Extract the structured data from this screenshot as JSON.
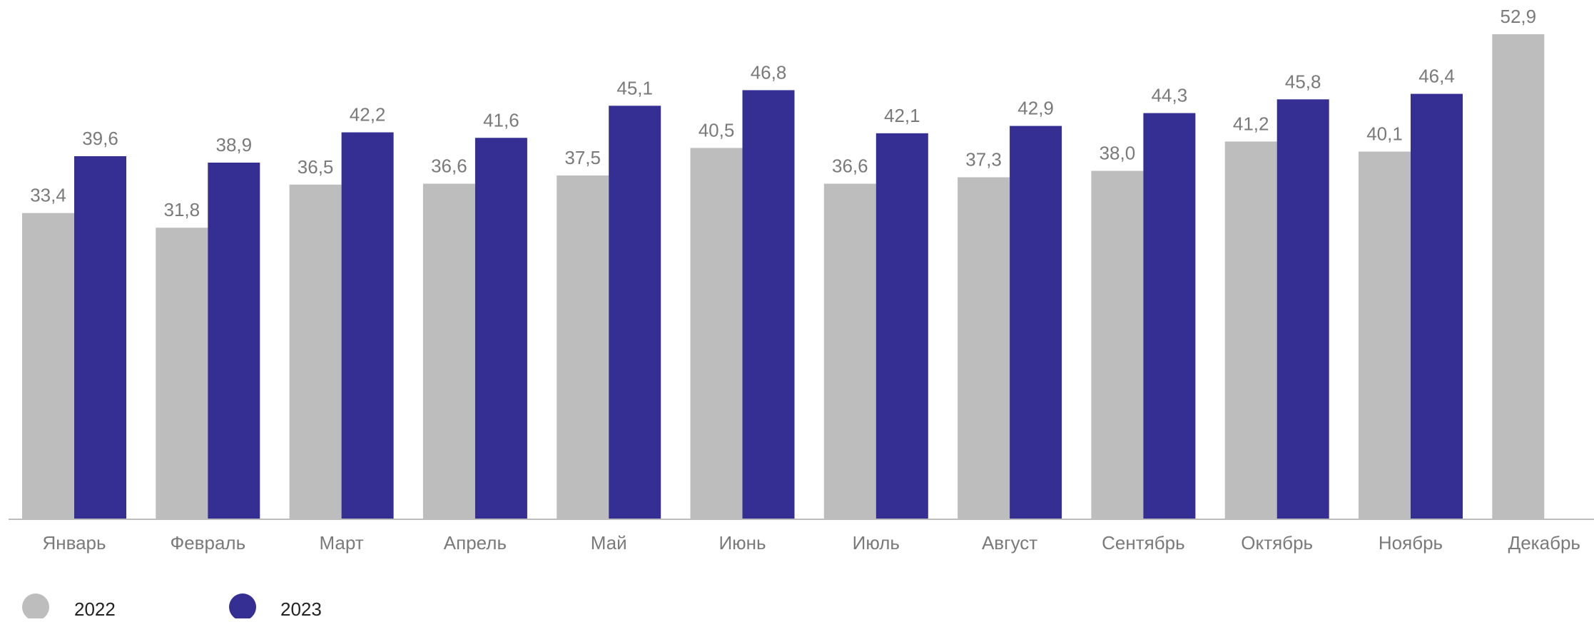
{
  "chart_data": {
    "type": "bar",
    "categories": [
      "Январь",
      "Февраль",
      "Март",
      "Апрель",
      "Май",
      "Июнь",
      "Июль",
      "Август",
      "Сентябрь",
      "Октябрь",
      "Ноябрь",
      "Декабрь"
    ],
    "series": [
      {
        "name": "2022",
        "color": "#bdbdbd",
        "values": [
          33.4,
          31.8,
          36.5,
          36.6,
          37.5,
          40.5,
          36.6,
          37.3,
          38.0,
          41.2,
          40.1,
          52.9
        ],
        "labels": [
          "33,4",
          "31,8",
          "36,5",
          "36,6",
          "37,5",
          "40,5",
          "36,6",
          "37,3",
          "38,0",
          "41,2",
          "40,1",
          "52,9"
        ]
      },
      {
        "name": "2023",
        "color": "#352f94",
        "values": [
          39.6,
          38.9,
          42.2,
          41.6,
          45.1,
          46.8,
          42.1,
          42.9,
          44.3,
          45.8,
          46.4,
          null
        ],
        "labels": [
          "39,6",
          "38,9",
          "42,2",
          "41,6",
          "45,1",
          "46,8",
          "42,1",
          "42,9",
          "44,3",
          "45,8",
          "46,4",
          null
        ]
      }
    ],
    "ylim": [
      0,
      52.9
    ],
    "grid": false,
    "legend": "bottom-left"
  }
}
